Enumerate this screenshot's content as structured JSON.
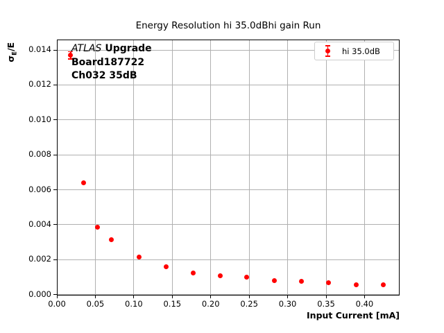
{
  "window": {
    "background": "#ffffff"
  },
  "chart_data": {
    "type": "scatter",
    "title": "Energy Resolution hi 35.0dBhi gain Run",
    "xlabel": "Input Current [mA]",
    "ylabel": "σE/E",
    "ylabel_parts": {
      "sigma": "σ",
      "sub": "E",
      "rest": "/E"
    },
    "xlim": [
      0,
      0.4456
    ],
    "ylim": [
      -5e-05,
      0.0146
    ],
    "x_ticks": [
      0,
      0.05,
      0.1,
      0.15,
      0.2,
      0.25,
      0.3,
      0.35,
      0.4
    ],
    "x_tick_labels": [
      "0.00",
      "0.05",
      "0.10",
      "0.15",
      "0.20",
      "0.25",
      "0.30",
      "0.35",
      "0.40"
    ],
    "y_ticks": [
      0,
      0.002,
      0.004,
      0.006,
      0.008,
      0.01,
      0.012,
      0.014
    ],
    "y_tick_labels": [
      "0.000",
      "0.002",
      "0.004",
      "0.006",
      "0.008",
      "0.010",
      "0.012",
      "0.014"
    ],
    "grid": true,
    "grid_color": "#b0b0b0",
    "series": [
      {
        "name": "hi 35.0dB",
        "color": "#ff0000",
        "marker": "circle-with-errorbar",
        "x": [
          0.018,
          0.035,
          0.053,
          0.071,
          0.107,
          0.142,
          0.177,
          0.212,
          0.247,
          0.283,
          0.318,
          0.353,
          0.389,
          0.424
        ],
        "y": [
          0.0137,
          0.0064,
          0.00385,
          0.00315,
          0.00215,
          0.00158,
          0.00123,
          0.0011,
          0.00102,
          0.00082,
          0.00077,
          0.00069,
          0.00058,
          0.00057
        ],
        "yerr": [
          0.0002,
          0,
          0,
          0,
          0,
          0,
          0,
          0,
          0,
          0,
          0,
          0,
          0,
          0
        ]
      }
    ],
    "legend": {
      "position": "upper right",
      "label": "hi 35.0dB",
      "border_color": "#cccccc"
    },
    "annotation": {
      "line1_italic": "ATLAS",
      "line1_bold": "Upgrade",
      "line2": "Board187722",
      "line3": "Ch032 35dB"
    }
  }
}
